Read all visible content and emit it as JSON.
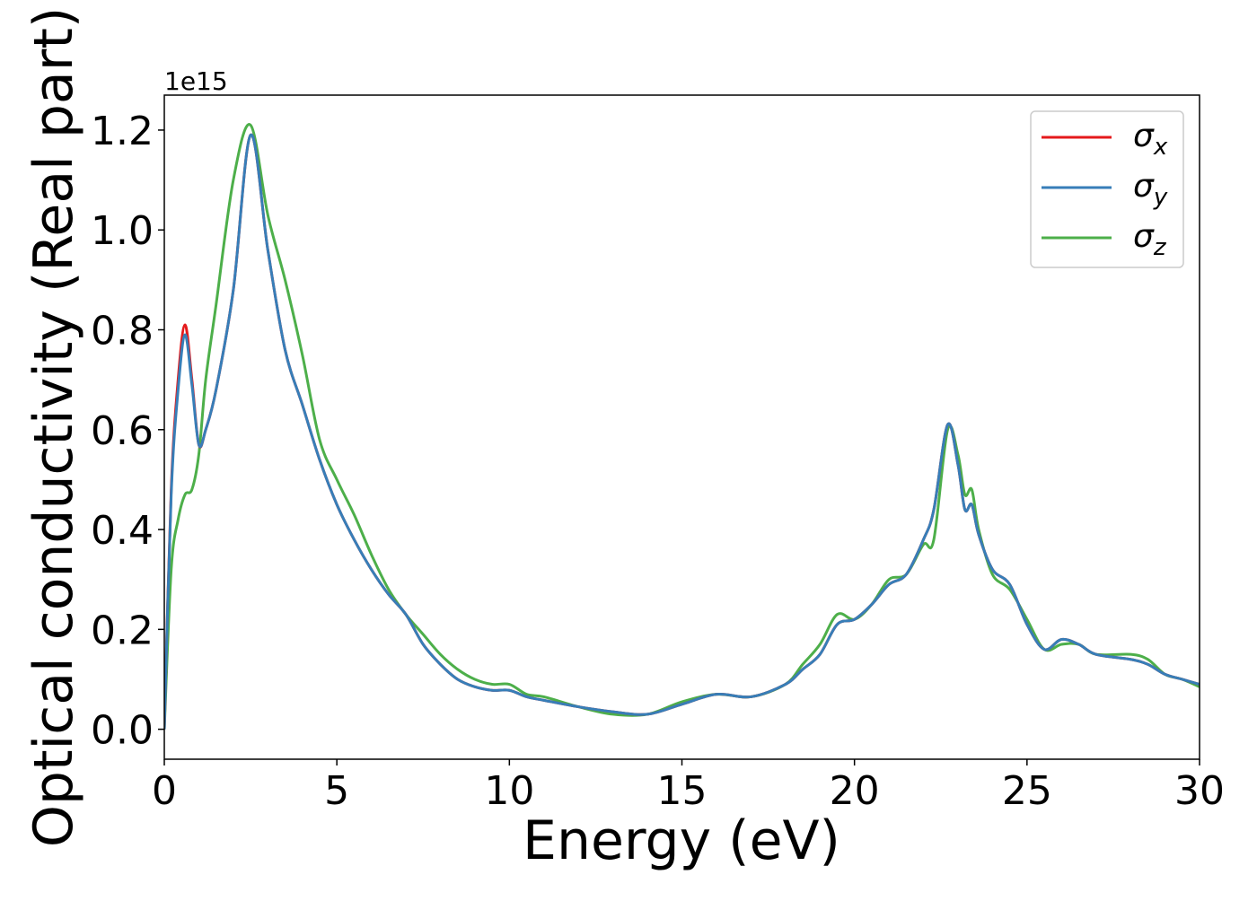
{
  "chart_data": {
    "type": "line",
    "xlabel": "Energy (eV)",
    "ylabel": "Optical conductivity (Real part)",
    "y_offset_label": "1e15",
    "xlim": [
      0,
      30
    ],
    "ylim": [
      -0.06,
      1.27
    ],
    "x_ticks": [
      0,
      5,
      10,
      15,
      20,
      25,
      30
    ],
    "x_tick_labels": [
      "0",
      "5",
      "10",
      "15",
      "20",
      "25",
      "30"
    ],
    "y_ticks": [
      0.0,
      0.2,
      0.4,
      0.6,
      0.8,
      1.0,
      1.2
    ],
    "y_tick_labels": [
      "0.0",
      "0.2",
      "0.4",
      "0.6",
      "0.8",
      "1.0",
      "1.2"
    ],
    "grid": false,
    "legend_position": "top-right",
    "x": [
      0,
      0.2,
      0.4,
      0.6,
      0.8,
      1.0,
      1.2,
      1.5,
      2.0,
      2.5,
      3.0,
      3.5,
      4.0,
      4.5,
      5.0,
      5.5,
      6.0,
      6.5,
      7.0,
      7.5,
      8.0,
      8.5,
      9.0,
      9.5,
      10.0,
      10.5,
      11.0,
      12.0,
      13.0,
      14.0,
      15.0,
      16.0,
      17.0,
      18.0,
      18.5,
      19.0,
      19.5,
      20.0,
      20.5,
      21.0,
      21.5,
      22.0,
      22.3,
      22.7,
      23.0,
      23.2,
      23.4,
      23.6,
      24.0,
      24.5,
      25.0,
      25.5,
      26.0,
      26.5,
      27.0,
      28.0,
      28.5,
      29.0,
      29.5,
      30.0
    ],
    "series": [
      {
        "name": "σx",
        "sub": "x",
        "color": "#e41a1c",
        "values": [
          0.0,
          0.48,
          0.7,
          0.81,
          0.7,
          0.57,
          0.6,
          0.68,
          0.88,
          1.19,
          0.96,
          0.76,
          0.65,
          0.54,
          0.45,
          0.38,
          0.32,
          0.27,
          0.23,
          0.17,
          0.13,
          0.1,
          0.085,
          0.078,
          0.078,
          0.065,
          0.058,
          0.045,
          0.035,
          0.03,
          0.05,
          0.07,
          0.065,
          0.09,
          0.12,
          0.15,
          0.21,
          0.22,
          0.25,
          0.29,
          0.31,
          0.38,
          0.44,
          0.61,
          0.53,
          0.44,
          0.45,
          0.39,
          0.32,
          0.29,
          0.21,
          0.16,
          0.18,
          0.17,
          0.15,
          0.14,
          0.13,
          0.11,
          0.1,
          0.09
        ]
      },
      {
        "name": "σy",
        "sub": "y",
        "color": "#377eb8",
        "values": [
          0.0,
          0.47,
          0.68,
          0.79,
          0.69,
          0.57,
          0.6,
          0.68,
          0.88,
          1.19,
          0.96,
          0.76,
          0.65,
          0.54,
          0.45,
          0.38,
          0.32,
          0.27,
          0.23,
          0.17,
          0.13,
          0.1,
          0.085,
          0.078,
          0.078,
          0.065,
          0.058,
          0.045,
          0.035,
          0.03,
          0.05,
          0.07,
          0.065,
          0.09,
          0.12,
          0.15,
          0.21,
          0.22,
          0.25,
          0.29,
          0.31,
          0.38,
          0.44,
          0.61,
          0.53,
          0.44,
          0.45,
          0.39,
          0.32,
          0.29,
          0.21,
          0.16,
          0.18,
          0.17,
          0.15,
          0.14,
          0.13,
          0.11,
          0.1,
          0.09
        ]
      },
      {
        "name": "σz",
        "sub": "z",
        "color": "#4daf4a",
        "values": [
          0.0,
          0.32,
          0.42,
          0.47,
          0.48,
          0.55,
          0.7,
          0.85,
          1.1,
          1.21,
          1.03,
          0.9,
          0.75,
          0.58,
          0.5,
          0.43,
          0.35,
          0.28,
          0.23,
          0.19,
          0.15,
          0.12,
          0.1,
          0.09,
          0.09,
          0.07,
          0.065,
          0.045,
          0.03,
          0.03,
          0.055,
          0.07,
          0.065,
          0.09,
          0.13,
          0.17,
          0.23,
          0.22,
          0.25,
          0.3,
          0.31,
          0.37,
          0.38,
          0.6,
          0.55,
          0.47,
          0.48,
          0.4,
          0.31,
          0.28,
          0.22,
          0.16,
          0.17,
          0.17,
          0.15,
          0.15,
          0.14,
          0.11,
          0.1,
          0.085
        ]
      }
    ]
  }
}
